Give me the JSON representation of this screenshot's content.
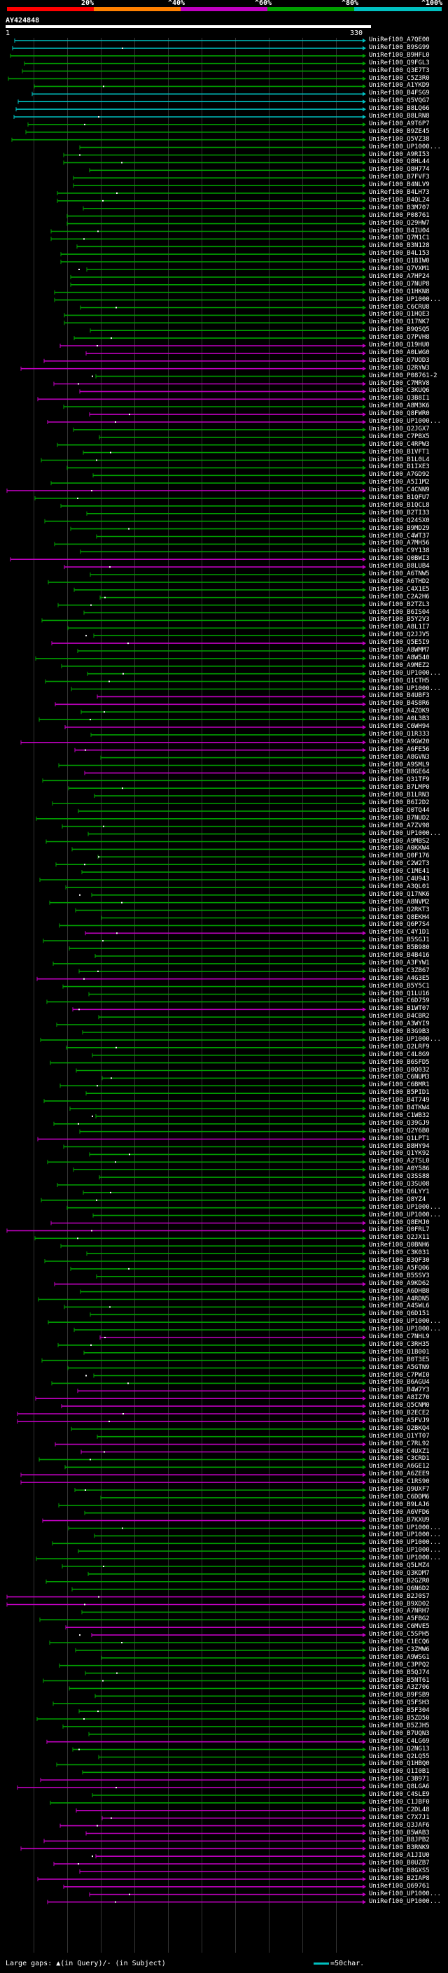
{
  "header": {
    "pct_labels": [
      "20%",
      "^40%",
      "^60%",
      "^80%",
      "^100%"
    ],
    "bands": [
      {
        "color": "#ff0000"
      },
      {
        "color": "#ff8000"
      },
      {
        "color": "#c000c0"
      },
      {
        "color": "#00a000"
      },
      {
        "color": "#00c0c0"
      }
    ],
    "query": "AY424848",
    "ruler_start": "1",
    "ruler_end": "330"
  },
  "hits": [
    {
      "id": "UniRef100_A7QE00",
      "c": "#00c0c0"
    },
    {
      "id": "UniRef100_B9SG99",
      "c": "#00c0c0"
    },
    {
      "id": "UniRef100_B9HFL0",
      "c": "#00a000"
    },
    {
      "id": "UniRef100_Q9FGL3",
      "c": "#00a000"
    },
    {
      "id": "UniRef100_Q3E7T3",
      "c": "#00a000"
    },
    {
      "id": "UniRef100_C5Z3R0",
      "c": "#00a000"
    },
    {
      "id": "UniRef100_A1YKD9",
      "c": "#00a000"
    },
    {
      "id": "UniRef100_B4FSG9",
      "c": "#00c0c0"
    },
    {
      "id": "UniRef100_Q5VQG7",
      "c": "#00c0c0"
    },
    {
      "id": "UniRef100_B8LQ66",
      "c": "#00c0c0"
    },
    {
      "id": "UniRef100_B8LRN8",
      "c": "#00c0c0"
    },
    {
      "id": "UniRef100_A9T6P7",
      "c": "#00a000"
    },
    {
      "id": "UniRef100_B9ZE45",
      "c": "#00a000"
    },
    {
      "id": "UniRef100_Q5VZ38",
      "c": "#00a000"
    },
    {
      "id": "UniRef100_UP1000...",
      "c": "#00a000"
    },
    {
      "id": "UniRef100_A9RI53",
      "c": "#00a000"
    },
    {
      "id": "UniRef100_Q8HL44",
      "c": "#00a000"
    },
    {
      "id": "UniRef100_Q8H774",
      "c": "#00a000"
    },
    {
      "id": "UniRef100_B7FVF3",
      "c": "#00a000"
    },
    {
      "id": "UniRef100_B4NLV9",
      "c": "#00a000"
    },
    {
      "id": "UniRef100_B4LH73",
      "c": "#00a000"
    },
    {
      "id": "UniRef100_B4QL24",
      "c": "#00a000"
    },
    {
      "id": "UniRef100_B3M707",
      "c": "#00a000"
    },
    {
      "id": "UniRef100_P08761",
      "c": "#00a000"
    },
    {
      "id": "UniRef100_Q29HW7",
      "c": "#00a000"
    },
    {
      "id": "UniRef100_B4IU04",
      "c": "#00a000"
    },
    {
      "id": "UniRef100_Q7M1C1",
      "c": "#00a000"
    },
    {
      "id": "UniRef100_B3N128",
      "c": "#00a000"
    },
    {
      "id": "UniRef100_B4L153",
      "c": "#00a000"
    },
    {
      "id": "UniRef100_Q1BIW0",
      "c": "#00a000"
    },
    {
      "id": "UniRef100_Q7VXM1",
      "c": "#00a000"
    },
    {
      "id": "UniRef100_A7HP24",
      "c": "#00a000"
    },
    {
      "id": "UniRef100_Q7NUP8",
      "c": "#00a000"
    },
    {
      "id": "UniRef100_Q1HKN8",
      "c": "#00a000"
    },
    {
      "id": "UniRef100_UP1000...",
      "c": "#00a000"
    },
    {
      "id": "UniRef100_C6CRU8",
      "c": "#00a000"
    },
    {
      "id": "UniRef100_Q1HQE3",
      "c": "#00a000"
    },
    {
      "id": "UniRef100_Q17NK7",
      "c": "#00a000"
    },
    {
      "id": "UniRef100_B9QSQ5",
      "c": "#00a000"
    },
    {
      "id": "UniRef100_Q7PVH8",
      "c": "#00a000"
    },
    {
      "id": "UniRef100_Q19HU0",
      "c": "#c000c0"
    },
    {
      "id": "UniRef100_A0LWG0",
      "c": "#c000c0"
    },
    {
      "id": "UniRef100_Q7UOD3",
      "c": "#c000c0"
    },
    {
      "id": "UniRef100_Q2RYW3",
      "c": "#c000c0"
    },
    {
      "id": "UniRef100_P08761-2",
      "c": "#00a000"
    },
    {
      "id": "UniRef100_C7MRV8",
      "c": "#c000c0"
    },
    {
      "id": "UniRef100_C3KUQ6",
      "c": "#c000c0"
    },
    {
      "id": "UniRef100_Q3B8I1",
      "c": "#c000c0"
    },
    {
      "id": "UniRef100_A8M3K6",
      "c": "#00a000"
    },
    {
      "id": "UniRef100_Q8FWR0",
      "c": "#c000c0"
    },
    {
      "id": "UniRef100_UP1000...",
      "c": "#c000c0"
    },
    {
      "id": "UniRef100_Q2JGX7",
      "c": "#00a000"
    },
    {
      "id": "UniRef100_C7PBX5",
      "c": "#00a000"
    },
    {
      "id": "UniRef100_C4RPW3",
      "c": "#00a000"
    },
    {
      "id": "UniRef100_B1VFT1",
      "c": "#00a000"
    },
    {
      "id": "UniRef100_B1L0L4",
      "c": "#00a000"
    },
    {
      "id": "UniRef100_B1IXE3",
      "c": "#00a000"
    },
    {
      "id": "UniRef100_A7GD92",
      "c": "#00a000"
    },
    {
      "id": "UniRef100_A5I1M2",
      "c": "#00a000"
    },
    {
      "id": "UniRef100_C4CNN9",
      "c": "#c000c0"
    },
    {
      "id": "UniRef100_B1QFU7",
      "c": "#00a000"
    },
    {
      "id": "UniRef100_B1QCL8",
      "c": "#00a000"
    },
    {
      "id": "UniRef100_B2TI33",
      "c": "#00a000"
    },
    {
      "id": "UniRef100_Q24SX0",
      "c": "#00a000"
    },
    {
      "id": "UniRef100_B9MD29",
      "c": "#00a000"
    },
    {
      "id": "UniRef100_C4WT37",
      "c": "#00a000"
    },
    {
      "id": "UniRef100_A7MH56",
      "c": "#00a000"
    },
    {
      "id": "UniRef100_C9Y138",
      "c": "#00a000"
    },
    {
      "id": "UniRef100_Q0BWI3",
      "c": "#c000c0"
    },
    {
      "id": "UniRef100_B8LUB4",
      "c": "#c000c0"
    },
    {
      "id": "UniRef100_A6TNW5",
      "c": "#00a000"
    },
    {
      "id": "UniRef100_A6THD2",
      "c": "#00a000"
    },
    {
      "id": "UniRef100_C4X1E5",
      "c": "#00a000"
    },
    {
      "id": "UniRef100_C2A2H6",
      "c": "#00a000"
    },
    {
      "id": "UniRef100_B2TZL3",
      "c": "#00a000"
    },
    {
      "id": "UniRef100_B6IS04",
      "c": "#00a000"
    },
    {
      "id": "UniRef100_B5Y2V3",
      "c": "#00a000"
    },
    {
      "id": "UniRef100_A8L1I7",
      "c": "#00a000"
    },
    {
      "id": "UniRef100_Q2JJV5",
      "c": "#00a000"
    },
    {
      "id": "UniRef100_Q5E5I9",
      "c": "#c000c0"
    },
    {
      "id": "UniRef100_A8WMM7",
      "c": "#00a000"
    },
    {
      "id": "UniRef100_A8W540",
      "c": "#00a000"
    },
    {
      "id": "UniRef100_A9MEZ2",
      "c": "#00a000"
    },
    {
      "id": "UniRef100_UP1000...",
      "c": "#00a000"
    },
    {
      "id": "UniRef100_Q1CTH5",
      "c": "#00a000"
    },
    {
      "id": "UniRef100_UP1000...",
      "c": "#00a000"
    },
    {
      "id": "UniRef100_B4UBF3",
      "c": "#c000c0"
    },
    {
      "id": "UniRef100_B4S8R6",
      "c": "#c000c0"
    },
    {
      "id": "UniRef100_A4ZOK9",
      "c": "#00a000"
    },
    {
      "id": "UniRef100_A0L3B3",
      "c": "#00a000"
    },
    {
      "id": "UniRef100_C6WH94",
      "c": "#c000c0"
    },
    {
      "id": "UniRef100_Q1R333",
      "c": "#00a000"
    },
    {
      "id": "UniRef100_A9GW20",
      "c": "#c000c0"
    },
    {
      "id": "UniRef100_A6FE56",
      "c": "#c000c0"
    },
    {
      "id": "UniRef100_A8GVN3",
      "c": "#00a000"
    },
    {
      "id": "UniRef100_A9SML9",
      "c": "#00a000"
    },
    {
      "id": "UniRef100_B8GE64",
      "c": "#c000c0"
    },
    {
      "id": "UniRef100_Q31TF9",
      "c": "#00a000"
    },
    {
      "id": "UniRef100_B7LMP0",
      "c": "#00a000"
    },
    {
      "id": "UniRef100_B1LRN3",
      "c": "#00a000"
    },
    {
      "id": "UniRef100_B6I2D2",
      "c": "#00a000"
    },
    {
      "id": "UniRef100_Q0TQ44",
      "c": "#00a000"
    },
    {
      "id": "UniRef100_B7NUD2",
      "c": "#00a000"
    },
    {
      "id": "UniRef100_A7ZV98",
      "c": "#00a000"
    },
    {
      "id": "UniRef100_UP1000...",
      "c": "#00a000"
    },
    {
      "id": "UniRef100_A9MBS2",
      "c": "#00a000"
    },
    {
      "id": "UniRef100_A0KKW4",
      "c": "#00a000"
    },
    {
      "id": "UniRef100_Q0F176",
      "c": "#00a000"
    },
    {
      "id": "UniRef100_C2W2T3",
      "c": "#00a000"
    },
    {
      "id": "UniRef100_C1ME41",
      "c": "#00a000"
    },
    {
      "id": "UniRef100_C4U943",
      "c": "#00a000"
    },
    {
      "id": "UniRef100_A3QL01",
      "c": "#00a000"
    },
    {
      "id": "UniRef100_Q17NK6",
      "c": "#00a000"
    },
    {
      "id": "UniRef100_A8NVM2",
      "c": "#00a000"
    },
    {
      "id": "UniRef100_Q2RKT3",
      "c": "#00a000"
    },
    {
      "id": "UniRef100_Q8EKH4",
      "c": "#00a000"
    },
    {
      "id": "UniRef100_Q6P7S4",
      "c": "#00a000"
    },
    {
      "id": "UniRef100_C4Y1D1",
      "c": "#c000c0"
    },
    {
      "id": "UniRef100_B5SGJ1",
      "c": "#00a000"
    },
    {
      "id": "UniRef100_B5B980",
      "c": "#00a000"
    },
    {
      "id": "UniRef100_B4B416",
      "c": "#00a000"
    },
    {
      "id": "UniRef100_A3FYW1",
      "c": "#00a000"
    },
    {
      "id": "UniRef100_C3ZB67",
      "c": "#00a000"
    },
    {
      "id": "UniRef100_A4G3E5",
      "c": "#c000c0"
    },
    {
      "id": "UniRef100_B5Y5C1",
      "c": "#00a000"
    },
    {
      "id": "UniRef100_Q1LU16",
      "c": "#00a000"
    },
    {
      "id": "UniRef100_C6D759",
      "c": "#00a000"
    },
    {
      "id": "UniRef100_B1WT07",
      "c": "#c000c0"
    },
    {
      "id": "UniRef100_B4CBR2",
      "c": "#00a000"
    },
    {
      "id": "UniRef100_A3WYI9",
      "c": "#00a000"
    },
    {
      "id": "UniRef100_B3G9B3",
      "c": "#00a000"
    },
    {
      "id": "UniRef100_UP1000...",
      "c": "#00a000"
    },
    {
      "id": "UniRef100_Q2LRF9",
      "c": "#00a000"
    },
    {
      "id": "UniRef100_C4L8G9",
      "c": "#00a000"
    },
    {
      "id": "UniRef100_B6SFD5",
      "c": "#00a000"
    },
    {
      "id": "UniRef100_Q0Q032",
      "c": "#00a000"
    },
    {
      "id": "UniRef100_C6NUM3",
      "c": "#00a000"
    },
    {
      "id": "UniRef100_C6BMR1",
      "c": "#00a000"
    },
    {
      "id": "UniRef100_B5PID1",
      "c": "#00a000"
    },
    {
      "id": "UniRef100_B4T749",
      "c": "#00a000"
    },
    {
      "id": "UniRef100_B4TKW4",
      "c": "#00a000"
    },
    {
      "id": "UniRef100_C1WB32",
      "c": "#00a000"
    },
    {
      "id": "UniRef100_Q39GJ9",
      "c": "#00a000"
    },
    {
      "id": "UniRef100_Q2Y6B0",
      "c": "#00a000"
    },
    {
      "id": "UniRef100_Q1LPT1",
      "c": "#c000c0"
    },
    {
      "id": "UniRef100_B8HY94",
      "c": "#00a000"
    },
    {
      "id": "UniRef100_Q1YK92",
      "c": "#00a000"
    },
    {
      "id": "UniRef100_A2TSL0",
      "c": "#00a000"
    },
    {
      "id": "UniRef100_A0Y586",
      "c": "#00a000"
    },
    {
      "id": "UniRef100_Q3SS88",
      "c": "#00a000"
    },
    {
      "id": "UniRef100_Q3SU08",
      "c": "#00a000"
    },
    {
      "id": "UniRef100_Q6LYY1",
      "c": "#00a000"
    },
    {
      "id": "UniRef100_Q8YZ4",
      "c": "#00a000"
    },
    {
      "id": "UniRef100_UP1000...",
      "c": "#00a000"
    },
    {
      "id": "UniRef100_UP1000...",
      "c": "#00a000"
    },
    {
      "id": "UniRef100_Q8EMJ0",
      "c": "#c000c0"
    },
    {
      "id": "UniRef100_Q0FRL7",
      "c": "#c000c0"
    },
    {
      "id": "UniRef100_Q2JX11",
      "c": "#00a000"
    },
    {
      "id": "UniRef100_Q0BNH6",
      "c": "#00a000"
    },
    {
      "id": "UniRef100_C3K031",
      "c": "#00a000"
    },
    {
      "id": "UniRef100_B3QF30",
      "c": "#00a000"
    },
    {
      "id": "UniRef100_A5FQ06",
      "c": "#00a000"
    },
    {
      "id": "UniRef100_B5SSV3",
      "c": "#00a000"
    },
    {
      "id": "UniRef100_A9KD62",
      "c": "#c000c0"
    },
    {
      "id": "UniRef100_A6DHB8",
      "c": "#00a000"
    },
    {
      "id": "UniRef100_A4RDN5",
      "c": "#00a000"
    },
    {
      "id": "UniRef100_A4SWL6",
      "c": "#00a000"
    },
    {
      "id": "UniRef100_Q6D151",
      "c": "#00a000"
    },
    {
      "id": "UniRef100_UP1000...",
      "c": "#00a000"
    },
    {
      "id": "UniRef100_UP1000...",
      "c": "#00a000"
    },
    {
      "id": "UniRef100_C7NHL9",
      "c": "#c000c0"
    },
    {
      "id": "UniRef100_C3RH35",
      "c": "#00a000"
    },
    {
      "id": "UniRef100_Q1B001",
      "c": "#00a000"
    },
    {
      "id": "UniRef100_B0T3E5",
      "c": "#00a000"
    },
    {
      "id": "UniRef100_A5GTN9",
      "c": "#00a000"
    },
    {
      "id": "UniRef100_C7PWI0",
      "c": "#00a000"
    },
    {
      "id": "UniRef100_B6AGU4",
      "c": "#00a000"
    },
    {
      "id": "UniRef100_B4W7Y3",
      "c": "#c000c0"
    },
    {
      "id": "UniRef100_A8IZ70",
      "c": "#c000c0"
    },
    {
      "id": "UniRef100_Q5CNM0",
      "c": "#c000c0"
    },
    {
      "id": "UniRef100_B2ECE2",
      "c": "#c000c0"
    },
    {
      "id": "UniRef100_A5FVJ9",
      "c": "#c000c0"
    },
    {
      "id": "UniRef100_Q2BKQ4",
      "c": "#00a000"
    },
    {
      "id": "UniRef100_Q1YT07",
      "c": "#00a000"
    },
    {
      "id": "UniRef100_C7RL92",
      "c": "#c000c0"
    },
    {
      "id": "UniRef100_C4UXZ1",
      "c": "#c000c0"
    },
    {
      "id": "UniRef100_C3CRD1",
      "c": "#00a000"
    },
    {
      "id": "UniRef100_A6GE12",
      "c": "#00a000"
    },
    {
      "id": "UniRef100_A6ZEE9",
      "c": "#c000c0"
    },
    {
      "id": "UniRef100_C1RS90",
      "c": "#c000c0"
    },
    {
      "id": "UniRef100_Q9UXF7",
      "c": "#00a000"
    },
    {
      "id": "UniRef100_C6DDM6",
      "c": "#00a000"
    },
    {
      "id": "UniRef100_B9LAJ6",
      "c": "#00a000"
    },
    {
      "id": "UniRef100_A6VFD6",
      "c": "#00a000"
    },
    {
      "id": "UniRef100_B7KXU9",
      "c": "#c000c0"
    },
    {
      "id": "UniRef100_UP1000...",
      "c": "#00a000"
    },
    {
      "id": "UniRef100_UP1000...",
      "c": "#00a000"
    },
    {
      "id": "UniRef100_UP1000...",
      "c": "#00a000"
    },
    {
      "id": "UniRef100_UP1000...",
      "c": "#00a000"
    },
    {
      "id": "UniRef100_UP1000...",
      "c": "#00a000"
    },
    {
      "id": "UniRef100_Q5LMZ4",
      "c": "#00a000"
    },
    {
      "id": "UniRef100_Q3KDM7",
      "c": "#00a000"
    },
    {
      "id": "UniRef100_B2GZR0",
      "c": "#00a000"
    },
    {
      "id": "UniRef100_Q6N6D2",
      "c": "#00a000"
    },
    {
      "id": "UniRef100_B2J0S7",
      "c": "#c000c0"
    },
    {
      "id": "UniRef100_B9XD02",
      "c": "#c000c0"
    },
    {
      "id": "UniRef100_A7NRH7",
      "c": "#00a000"
    },
    {
      "id": "UniRef100_A5FBG2",
      "c": "#00a000"
    },
    {
      "id": "UniRef100_C6MVE5",
      "c": "#c000c0"
    },
    {
      "id": "UniRef100_C5SPH5",
      "c": "#c000c0"
    },
    {
      "id": "UniRef100_C1ECQ6",
      "c": "#00a000"
    },
    {
      "id": "UniRef100_C3ZMW6",
      "c": "#00a000"
    },
    {
      "id": "UniRef100_A9WSG1",
      "c": "#00a000"
    },
    {
      "id": "UniRef100_C3PPQ2",
      "c": "#00a000"
    },
    {
      "id": "UniRef100_B5QJ74",
      "c": "#00a000"
    },
    {
      "id": "UniRef100_B5NT61",
      "c": "#00a000"
    },
    {
      "id": "UniRef100_A3Z706",
      "c": "#00a000"
    },
    {
      "id": "UniRef100_B9FSB9",
      "c": "#00a000"
    },
    {
      "id": "UniRef100_Q5FSH3",
      "c": "#00a000"
    },
    {
      "id": "UniRef100_B5F304",
      "c": "#00a000"
    },
    {
      "id": "UniRef100_B5ZD50",
      "c": "#00a000"
    },
    {
      "id": "UniRef100_B5ZJH5",
      "c": "#00a000"
    },
    {
      "id": "UniRef100_B7UQN3",
      "c": "#00a000"
    },
    {
      "id": "UniRef100_C4LG69",
      "c": "#c000c0"
    },
    {
      "id": "UniRef100_Q2NG13",
      "c": "#00a000"
    },
    {
      "id": "UniRef100_Q2LQ55",
      "c": "#00a000"
    },
    {
      "id": "UniRef100_Q1HBQ0",
      "c": "#00a000"
    },
    {
      "id": "UniRef100_Q1I0B1",
      "c": "#00a000"
    },
    {
      "id": "UniRef100_C3B971",
      "c": "#c000c0"
    },
    {
      "id": "UniRef100_Q8LGA6",
      "c": "#c000c0"
    },
    {
      "id": "UniRef100_C4SLE9",
      "c": "#00a000"
    },
    {
      "id": "UniRef100_C1JBF0",
      "c": "#00a000"
    },
    {
      "id": "UniRef100_C2DL48",
      "c": "#c000c0"
    },
    {
      "id": "UniRef100_C7X7J1",
      "c": "#c000c0"
    },
    {
      "id": "UniRef100_Q3JAF6",
      "c": "#c000c0"
    },
    {
      "id": "UniRef100_B5WAB3",
      "c": "#c000c0"
    },
    {
      "id": "UniRef100_B8JPB2",
      "c": "#c000c0"
    },
    {
      "id": "UniRef100_B3RNK9",
      "c": "#c000c0"
    },
    {
      "id": "UniRef100_A1JIU0",
      "c": "#c000c0"
    },
    {
      "id": "UniRef100_B0UZB7",
      "c": "#c000c0"
    },
    {
      "id": "UniRef100_B8GXS5",
      "c": "#c000c0"
    },
    {
      "id": "UniRef100_B2IAP8",
      "c": "#c000c0"
    },
    {
      "id": "UniRef100_Q69761",
      "c": "#c000c0"
    },
    {
      "id": "UniRef100_UP1000...",
      "c": "#c000c0"
    },
    {
      "id": "UniRef100_UP1000...",
      "c": "#c000c0"
    }
  ],
  "footer": {
    "text": "Large gaps: ▲(in Query)/- (in Subject)",
    "scale": "=50char."
  }
}
